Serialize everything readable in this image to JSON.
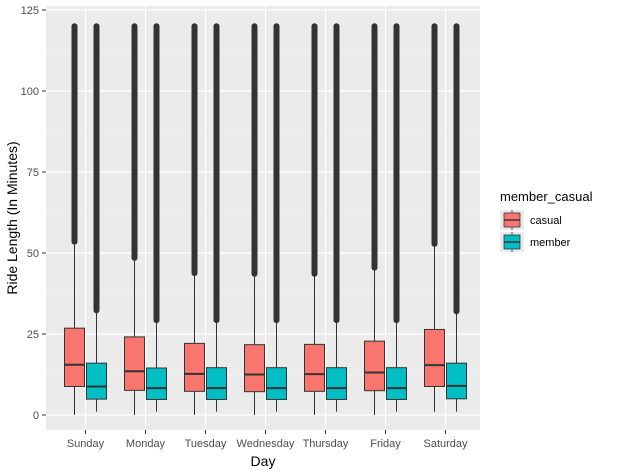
{
  "chart_data": {
    "type": "boxplot",
    "xlabel": "Day",
    "ylabel": "Ride Length (In Minutes)",
    "ylim": [
      0,
      125
    ],
    "yticks": [
      0,
      25,
      50,
      75,
      100,
      125
    ],
    "grid": true,
    "categories": [
      "Sunday",
      "Monday",
      "Tuesday",
      "Wednesday",
      "Thursday",
      "Friday",
      "Saturday"
    ],
    "legend": {
      "title": "member_casual",
      "position": "right",
      "entries": [
        {
          "name": "casual",
          "color": "#F8766D"
        },
        {
          "name": "member",
          "color": "#00BFC4"
        }
      ]
    },
    "series": [
      {
        "name": "casual",
        "color": "#F8766D",
        "boxes": [
          {
            "min": 0,
            "q1": 8.8,
            "median": 15.5,
            "q3": 26.8,
            "whisker_high": 53.5,
            "outlier_max": 120
          },
          {
            "min": 0,
            "q1": 7.6,
            "median": 13.5,
            "q3": 24.1,
            "whisker_high": 48.5,
            "outlier_max": 120
          },
          {
            "min": 0,
            "q1": 7.3,
            "median": 12.7,
            "q3": 22.1,
            "whisker_high": 43.8,
            "outlier_max": 120
          },
          {
            "min": 0,
            "q1": 7.2,
            "median": 12.5,
            "q3": 21.7,
            "whisker_high": 43.6,
            "outlier_max": 120
          },
          {
            "min": 0,
            "q1": 7.3,
            "median": 12.6,
            "q3": 21.8,
            "whisker_high": 43.6,
            "outlier_max": 120
          },
          {
            "min": 0,
            "q1": 7.5,
            "median": 13.1,
            "q3": 22.8,
            "whisker_high": 45.5,
            "outlier_max": 120
          },
          {
            "min": 1,
            "q1": 8.8,
            "median": 15.4,
            "q3": 26.4,
            "whisker_high": 52.8,
            "outlier_max": 120
          }
        ]
      },
      {
        "name": "member",
        "color": "#00BFC4",
        "boxes": [
          {
            "min": 1,
            "q1": 4.9,
            "median": 8.8,
            "q3": 16.0,
            "whisker_high": 32.3,
            "outlier_max": 120
          },
          {
            "min": 1,
            "q1": 4.8,
            "median": 8.3,
            "q3": 14.5,
            "whisker_high": 29.3,
            "outlier_max": 120
          },
          {
            "min": 1,
            "q1": 4.8,
            "median": 8.3,
            "q3": 14.6,
            "whisker_high": 29.3,
            "outlier_max": 120
          },
          {
            "min": 1,
            "q1": 4.8,
            "median": 8.3,
            "q3": 14.6,
            "whisker_high": 29.3,
            "outlier_max": 120
          },
          {
            "min": 1,
            "q1": 4.8,
            "median": 8.3,
            "q3": 14.6,
            "whisker_high": 29.3,
            "outlier_max": 120
          },
          {
            "min": 1,
            "q1": 4.8,
            "median": 8.3,
            "q3": 14.6,
            "whisker_high": 29.3,
            "outlier_max": 120
          },
          {
            "min": 1,
            "q1": 5.0,
            "median": 9.0,
            "q3": 16.0,
            "whisker_high": 32.0,
            "outlier_max": 120
          }
        ]
      }
    ]
  }
}
